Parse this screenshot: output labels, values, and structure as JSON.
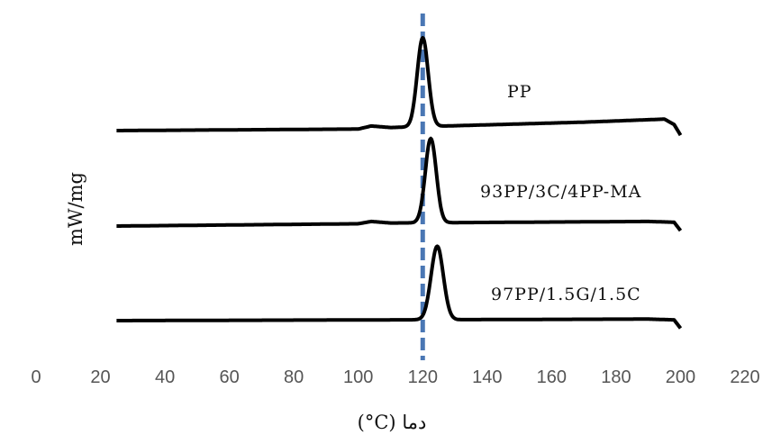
{
  "chart_data": {
    "type": "line",
    "title": "",
    "xlabel": "(°C) دما",
    "ylabel": "mW/mg",
    "xlim": [
      0,
      220
    ],
    "x_ticks": [
      0,
      20,
      40,
      60,
      80,
      100,
      120,
      140,
      160,
      180,
      200,
      220
    ],
    "grid": false,
    "reference_line": {
      "x": 120,
      "style": "dashed",
      "color": "#4a77b4"
    },
    "line_color": "#000000",
    "series": [
      {
        "name": "PP",
        "x_range": [
          25,
          200
        ],
        "baseline": [
          [
            25,
            0.0
          ],
          [
            100,
            0.1
          ],
          [
            104,
            0.3
          ],
          [
            110,
            0.2
          ],
          [
            170,
            0.55
          ],
          [
            195,
            0.75
          ],
          [
            198,
            0.4
          ],
          [
            200,
            -0.3
          ]
        ],
        "peak": {
          "x": 120,
          "height": 5.8,
          "width": 1.7
        }
      },
      {
        "name": "93PP/3C/4PP-MA",
        "x_range": [
          25,
          200
        ],
        "baseline": [
          [
            25,
            0.0
          ],
          [
            100,
            0.15
          ],
          [
            104,
            0.3
          ],
          [
            110,
            0.2
          ],
          [
            190,
            0.3
          ],
          [
            198,
            0.25
          ],
          [
            200,
            -0.3
          ]
        ],
        "peak": {
          "x": 122.5,
          "height": 5.5,
          "width": 1.7
        }
      },
      {
        "name": "97PP/1.5G/1.5C",
        "x_range": [
          25,
          200
        ],
        "baseline": [
          [
            25,
            0.0
          ],
          [
            110,
            0.05
          ],
          [
            190,
            0.1
          ],
          [
            198,
            0.05
          ],
          [
            200,
            -0.5
          ]
        ],
        "peak": {
          "x": 124.5,
          "height": 4.8,
          "width": 1.9
        }
      }
    ]
  }
}
